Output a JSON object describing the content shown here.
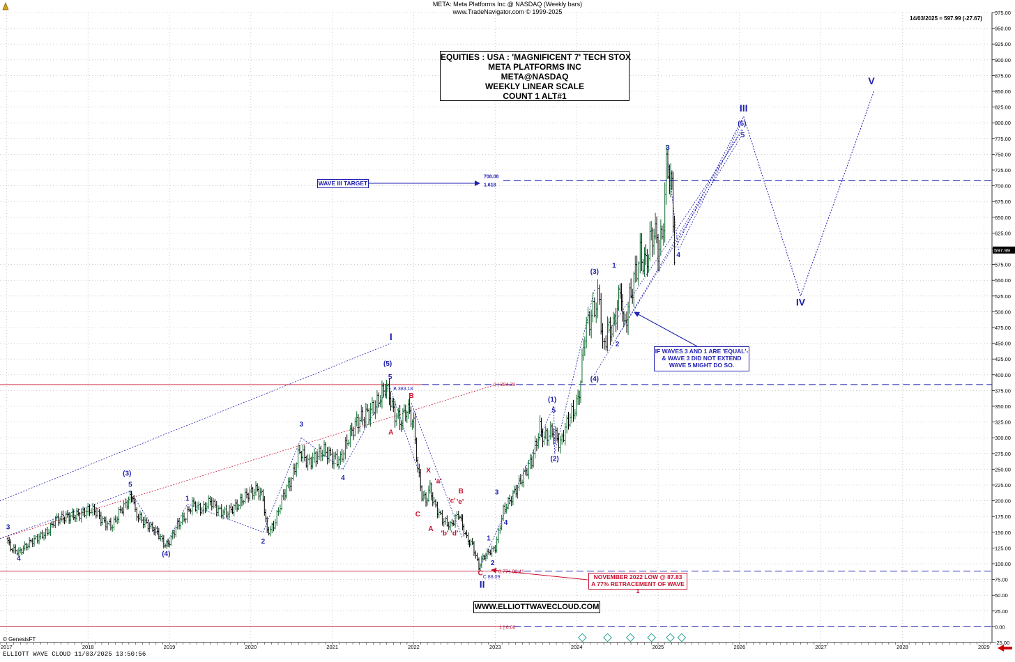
{
  "header": {
    "line1": "META:  Meta Platforms Inc @ NASDAQ  (Weekly bars)",
    "line2": "www.TradeNavigator.com © 1999-2025",
    "last_price_label": "14/03/2025 = 597.99 (-27.67)"
  },
  "info_box": {
    "lines": [
      "EQUITIES : USA : 'MAGNIFICENT 7' TECH STOX",
      "META PLATFORMS INC",
      "META@NASDAQ",
      "WEEKLY LINEAR SCALE",
      "COUNT 1 ALT#1"
    ]
  },
  "footer": {
    "genesis": "© GenesisFT",
    "bottom_left": "ELLIOTT WAVE CLOUD   11/03/2025 13:50:56",
    "brand": "WWW.ELLIOTTWAVECLOUD.COM"
  },
  "notes": {
    "wave_iii_target": "WAVE III TARGET",
    "target_value": "708.08",
    "target_ratio": "1.618",
    "if_waves": [
      "IF WAVES 3 AND 1 ARE 'EQUAL'-",
      "& WAVE 3 DID NOT EXTEND",
      "WAVE 5 MIGHT DO SO."
    ],
    "nov_low": [
      "NOVEMBER 2022 LOW @ 87.83",
      "A 77% RETRACEMENT OF WAVE 1"
    ],
    "fib_1": "0 | 384.39",
    "fib_077": "0.77 | 88.41",
    "fib_0": "1 | 0.00",
    "high_label": "B 383.18",
    "low_label": "C 88.09",
    "current_price_tag": "597.99"
  },
  "colors": {
    "bull": "#0b6b2e",
    "bear": "#000000",
    "wave_blue": "#1f1fb0",
    "wave_red": "#c8102e",
    "grid": "#b0b0b0"
  },
  "chart_data": {
    "type": "line",
    "title": "META:  Meta Platforms Inc @ NASDAQ  (Weekly bars)",
    "ylim": [
      -25,
      975
    ],
    "y_ticks": [
      -25,
      0,
      25,
      50,
      75,
      100,
      125,
      150,
      175,
      200,
      225,
      250,
      275,
      300,
      325,
      350,
      375,
      400,
      425,
      450,
      475,
      500,
      525,
      550,
      575,
      600,
      625,
      650,
      675,
      700,
      725,
      750,
      775,
      800,
      825,
      850,
      875,
      900,
      925,
      950,
      975
    ],
    "x_ticks": [
      2017,
      2018,
      2019,
      2020,
      2021,
      2022,
      2023,
      2024,
      2025,
      2026,
      2027,
      2028,
      2029
    ],
    "grid": true,
    "series": [
      {
        "kind": "price_path",
        "points": [
          [
            2017.0,
            140
          ],
          [
            2017.05,
            125
          ],
          [
            2017.15,
            118
          ],
          [
            2017.3,
            135
          ],
          [
            2017.5,
            150
          ],
          [
            2017.6,
            170
          ],
          [
            2017.75,
            175
          ],
          [
            2017.9,
            178
          ],
          [
            2018.0,
            185
          ],
          [
            2018.08,
            185
          ],
          [
            2018.2,
            165
          ],
          [
            2018.3,
            160
          ],
          [
            2018.4,
            185
          ],
          [
            2018.5,
            200
          ],
          [
            2018.55,
            210
          ],
          [
            2018.58,
            180
          ],
          [
            2018.7,
            165
          ],
          [
            2018.85,
            150
          ],
          [
            2018.95,
            128
          ],
          [
            2019.0,
            135
          ],
          [
            2019.1,
            162
          ],
          [
            2019.2,
            175
          ],
          [
            2019.28,
            195
          ],
          [
            2019.4,
            185
          ],
          [
            2019.5,
            200
          ],
          [
            2019.6,
            185
          ],
          [
            2019.7,
            180
          ],
          [
            2019.85,
            195
          ],
          [
            2019.95,
            210
          ],
          [
            2020.08,
            218
          ],
          [
            2020.15,
            205
          ],
          [
            2020.2,
            150
          ],
          [
            2020.28,
            160
          ],
          [
            2020.4,
            210
          ],
          [
            2020.5,
            235
          ],
          [
            2020.6,
            280
          ],
          [
            2020.7,
            260
          ],
          [
            2020.8,
            270
          ],
          [
            2020.9,
            280
          ],
          [
            2021.0,
            268
          ],
          [
            2021.1,
            265
          ],
          [
            2021.2,
            300
          ],
          [
            2021.3,
            325
          ],
          [
            2021.45,
            340
          ],
          [
            2021.55,
            355
          ],
          [
            2021.65,
            380
          ],
          [
            2021.7,
            370
          ],
          [
            2021.75,
            340
          ],
          [
            2021.85,
            325
          ],
          [
            2021.9,
            345
          ],
          [
            2021.95,
            340
          ],
          [
            2022.0,
            320
          ],
          [
            2022.05,
            250
          ],
          [
            2022.1,
            210
          ],
          [
            2022.15,
            200
          ],
          [
            2022.2,
            220
          ],
          [
            2022.25,
            195
          ],
          [
            2022.35,
            170
          ],
          [
            2022.45,
            160
          ],
          [
            2022.55,
            180
          ],
          [
            2022.6,
            160
          ],
          [
            2022.65,
            140
          ],
          [
            2022.72,
            130
          ],
          [
            2022.8,
            95
          ],
          [
            2022.85,
            110
          ],
          [
            2022.92,
            118
          ],
          [
            2023.0,
            125
          ],
          [
            2023.1,
            185
          ],
          [
            2023.2,
            205
          ],
          [
            2023.35,
            240
          ],
          [
            2023.45,
            265
          ],
          [
            2023.55,
            315
          ],
          [
            2023.6,
            300
          ],
          [
            2023.7,
            310
          ],
          [
            2023.8,
            290
          ],
          [
            2023.9,
            330
          ],
          [
            2024.0,
            350
          ],
          [
            2024.05,
            390
          ],
          [
            2024.1,
            470
          ],
          [
            2024.2,
            500
          ],
          [
            2024.28,
            525
          ],
          [
            2024.32,
            440
          ],
          [
            2024.38,
            470
          ],
          [
            2024.45,
            475
          ],
          [
            2024.5,
            510
          ],
          [
            2024.55,
            535
          ],
          [
            2024.58,
            470
          ],
          [
            2024.65,
            520
          ],
          [
            2024.72,
            560
          ],
          [
            2024.78,
            590
          ],
          [
            2024.85,
            575
          ],
          [
            2024.9,
            610
          ],
          [
            2024.95,
            630
          ],
          [
            2025.0,
            600
          ],
          [
            2025.05,
            615
          ],
          [
            2025.1,
            725
          ],
          [
            2025.14,
            720
          ],
          [
            2025.17,
            690
          ],
          [
            2025.2,
            598
          ]
        ]
      }
    ],
    "horizontal_levels": [
      {
        "label": "1.618",
        "value": 708.08
      },
      {
        "label": "0 | 384.39",
        "value": 384.39
      },
      {
        "label": "0.77 | 88.41",
        "value": 88.41
      },
      {
        "label": "1 | 0.00",
        "value": 0.0
      }
    ],
    "wave_labels": [
      {
        "text": "3",
        "x": 2017.02,
        "y": 155,
        "color": "blue"
      },
      {
        "text": "4",
        "x": 2017.15,
        "y": 105,
        "color": "blue"
      },
      {
        "text": "(3)",
        "x": 2018.48,
        "y": 240,
        "color": "blue"
      },
      {
        "text": "5",
        "x": 2018.52,
        "y": 222,
        "color": "blue"
      },
      {
        "text": "(4)",
        "x": 2018.96,
        "y": 112,
        "color": "blue"
      },
      {
        "text": "1",
        "x": 2019.22,
        "y": 200,
        "color": "blue"
      },
      {
        "text": "2",
        "x": 2020.15,
        "y": 132,
        "color": "blue"
      },
      {
        "text": "3",
        "x": 2020.62,
        "y": 318,
        "color": "blue"
      },
      {
        "text": "4",
        "x": 2021.13,
        "y": 233,
        "color": "blue"
      },
      {
        "text": "(5)",
        "x": 2021.68,
        "y": 414,
        "color": "blue"
      },
      {
        "text": "5",
        "x": 2021.71,
        "y": 393,
        "color": "blue"
      },
      {
        "text": "I",
        "x": 2021.72,
        "y": 455,
        "color": "blue"
      },
      {
        "text": "B",
        "x": 2021.97,
        "y": 363,
        "color": "red"
      },
      {
        "text": "A",
        "x": 2021.72,
        "y": 305,
        "color": "red"
      },
      {
        "text": "X",
        "x": 2022.18,
        "y": 245,
        "color": "red"
      },
      {
        "text": "'a'",
        "x": 2022.3,
        "y": 228,
        "color": "red"
      },
      {
        "text": "C",
        "x": 2022.05,
        "y": 175,
        "color": "red"
      },
      {
        "text": "A",
        "x": 2022.21,
        "y": 152,
        "color": "red"
      },
      {
        "text": "'c'",
        "x": 2022.47,
        "y": 197,
        "color": "red"
      },
      {
        "text": "'e'",
        "x": 2022.57,
        "y": 195,
        "color": "red"
      },
      {
        "text": "B",
        "x": 2022.58,
        "y": 212,
        "color": "red"
      },
      {
        "text": "'b'",
        "x": 2022.38,
        "y": 145,
        "color": "red"
      },
      {
        "text": "'d'",
        "x": 2022.5,
        "y": 145,
        "color": "red"
      },
      {
        "text": "C",
        "x": 2022.82,
        "y": 82,
        "color": "red"
      },
      {
        "text": "II",
        "x": 2022.84,
        "y": 62,
        "color": "blue"
      },
      {
        "text": "1",
        "x": 2022.92,
        "y": 137,
        "color": "blue"
      },
      {
        "text": "2",
        "x": 2022.97,
        "y": 98,
        "color": "blue"
      },
      {
        "text": "3",
        "x": 2023.02,
        "y": 210,
        "color": "blue"
      },
      {
        "text": "4",
        "x": 2023.13,
        "y": 162,
        "color": "blue"
      },
      {
        "text": "(1)",
        "x": 2023.7,
        "y": 357,
        "color": "blue"
      },
      {
        "text": "5",
        "x": 2023.72,
        "y": 340,
        "color": "blue"
      },
      {
        "text": "(2)",
        "x": 2023.73,
        "y": 263,
        "color": "blue"
      },
      {
        "text": "(3)",
        "x": 2024.22,
        "y": 560,
        "color": "blue"
      },
      {
        "text": "(4)",
        "x": 2024.22,
        "y": 390,
        "color": "blue"
      },
      {
        "text": "1",
        "x": 2024.46,
        "y": 570,
        "color": "blue"
      },
      {
        "text": "2",
        "x": 2024.5,
        "y": 445,
        "color": "blue"
      },
      {
        "text": "3",
        "x": 2025.12,
        "y": 757,
        "color": "blue"
      },
      {
        "text": "4",
        "x": 2025.25,
        "y": 587,
        "color": "blue"
      },
      {
        "text": "(5)",
        "x": 2026.03,
        "y": 795,
        "color": "blue"
      },
      {
        "text": "5",
        "x": 2026.04,
        "y": 777,
        "color": "blue"
      },
      {
        "text": "III",
        "x": 2026.05,
        "y": 818,
        "color": "blue"
      },
      {
        "text": "IV",
        "x": 2026.75,
        "y": 510,
        "color": "blue"
      },
      {
        "text": "V",
        "x": 2027.62,
        "y": 861,
        "color": "blue"
      }
    ],
    "projection": [
      [
        2025.2,
        598
      ],
      [
        2026.05,
        810
      ],
      [
        2026.75,
        525
      ],
      [
        2027.65,
        850
      ]
    ]
  }
}
